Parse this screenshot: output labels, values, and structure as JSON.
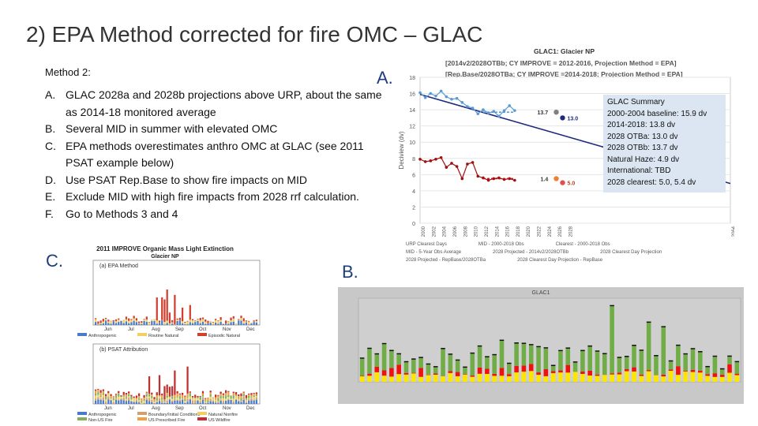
{
  "slide": {
    "title": "2) EPA Method corrected for fire OMC – GLAC",
    "method_heading": "Method 2:",
    "items": [
      {
        "key": "A.",
        "text": "GLAC 2028a and 2028b projections above URP, about the same as 2014-18 monitored average"
      },
      {
        "key": "B.",
        "text": "Several MID in summer with elevated OMC"
      },
      {
        "key": "C.",
        "text": "EPA methods overestimates anthro OMC at GLAC (see 2011 PSAT example below)"
      },
      {
        "key": "D.",
        "text": "Use PSAT Rep.Base to show fire impacts on MID"
      },
      {
        "key": "E.",
        "text": "Exclude MID with high fire impacts from 2028 rrf calculation."
      },
      {
        "key": "F.",
        "text": "Go to Methods 3 and 4"
      }
    ],
    "tags": {
      "a": "A.",
      "b": "B.",
      "c": "C."
    }
  },
  "chart_a": {
    "title_line1": "GLAC1: Glacier NP",
    "title_line2": "[2014v2/2028OTBb; CY IMPROVE = 2012-2016, Projection Method = EPA]",
    "title_line3": "[Rep.Base/2028OTBa; CY IMPROVE =2014-2018; Projection Method = EPA]",
    "ylabel": "Deciview (dv)",
    "label_137": "13.7",
    "label_130": "13.0",
    "label_14": "1.4",
    "label_50": "5.0",
    "legend": [
      "URP Clearest Days",
      "MID - 5-Year Obs Average",
      "2028 Projected - 2014v2/2028OTBb",
      "2028 Projected - RepBase/2028OTBa",
      "MID - 2000-2018 Obs",
      "Clearest - 2000-2018 Obs",
      "2028 Clearest Day Projection",
      "2028 Clearest Day Projection - RepBase"
    ]
  },
  "summary": {
    "lines": [
      "GLAC Summary",
      "2000-2004 baseline: 15.9 dv",
      "2014-2018: 13.8 dv",
      "2028 OTBa: 13.0 dv",
      "2028 OTBb: 13.7 dv",
      "Natural Haze: 4.9 dv",
      "International: TBD",
      "2028 clearest: 5.0, 5.4 dv"
    ]
  },
  "chart_c": {
    "title": "2011 IMPROVE Organic Mass Light Extinction",
    "subtitle": "Glacier NP",
    "panel1_title": "(a) EPA Method",
    "panel2_title": "(b) PSAT Attribution",
    "months": [
      "Jun",
      "Jul",
      "Aug",
      "Sep",
      "Oct",
      "Nov",
      "Dec"
    ],
    "legend1": [
      "Anthropogenic",
      "Routine Natural",
      "Episodic Natural"
    ],
    "legend2": [
      "Anthropogenic",
      "Boundary/Initial Conditions",
      "Natural Nonfire",
      "Non-US Fire",
      "US Prescribed Fire",
      "US Wildfire"
    ],
    "colors": {
      "anthro": "#4a7bc8",
      "natural": "#f0d060",
      "episodic": "#d04030",
      "boundary": "#d0a070",
      "nonus": "#80b060",
      "prescribed": "#f0a040",
      "wildfire": "#c03030"
    }
  },
  "chart_b": {
    "title": "GLAC1",
    "colors": {
      "green": "#70ad47",
      "red": "#ee1111",
      "yellow": "#ffe600",
      "black": "#111111",
      "bg": "#c8c8c8"
    }
  },
  "chart_data": [
    {
      "type": "line",
      "title": "GLAC1: Glacier NP",
      "ylabel": "Deciview (dv)",
      "ylim": [
        0,
        18
      ],
      "x": [
        "2000",
        "2002",
        "2004",
        "2006",
        "2008",
        "2010",
        "2012",
        "2014",
        "2016",
        "2018",
        "2020",
        "2022",
        "2024",
        "2026",
        "2028",
        "2064"
      ],
      "series": [
        {
          "name": "URP",
          "points": [
            [
              2000,
              15.9
            ],
            [
              2064,
              4.9
            ]
          ]
        },
        {
          "name": "MID",
          "points": [
            [
              2000,
              16.1
            ],
            [
              2001,
              15.5
            ],
            [
              2002,
              16.0
            ],
            [
              2003,
              15.7
            ],
            [
              2004,
              16.3
            ],
            [
              2005,
              15.6
            ],
            [
              2006,
              15.3
            ],
            [
              2007,
              15.4
            ],
            [
              2008,
              14.9
            ],
            [
              2009,
              14.4
            ],
            [
              2010,
              14.2
            ],
            [
              2011,
              13.5
            ],
            [
              2012,
              14.0
            ],
            [
              2013,
              13.6
            ],
            [
              2014,
              13.8
            ],
            [
              2015,
              13.2
            ],
            [
              2016,
              13.9
            ],
            [
              2017,
              14.5
            ],
            [
              2018,
              13.9
            ]
          ]
        },
        {
          "name": "Clearest",
          "points": [
            [
              2000,
              7.9
            ],
            [
              2001,
              7.6
            ],
            [
              2002,
              7.7
            ],
            [
              2003,
              7.9
            ],
            [
              2004,
              8.1
            ],
            [
              2005,
              6.9
            ],
            [
              2006,
              7.4
            ],
            [
              2007,
              7.0
            ],
            [
              2008,
              5.5
            ],
            [
              2009,
              7.3
            ],
            [
              2010,
              7.5
            ],
            [
              2011,
              5.8
            ],
            [
              2012,
              5.6
            ],
            [
              2013,
              5.3
            ],
            [
              2014,
              5.5
            ],
            [
              2015,
              5.6
            ],
            [
              2016,
              5.4
            ],
            [
              2017,
              5.5
            ],
            [
              2018,
              5.3
            ]
          ]
        },
        {
          "name": "2028 OTBa",
          "points": [
            [
              2028,
              13.0
            ]
          ]
        },
        {
          "name": "2028 OTBb",
          "points": [
            [
              2028,
              13.7
            ]
          ]
        },
        {
          "name": "2028 Clearest",
          "points": [
            [
              2028,
              5.0
            ]
          ]
        }
      ],
      "yticks": [
        0,
        2,
        4,
        6,
        8,
        10,
        12,
        14,
        16,
        18
      ]
    }
  ]
}
